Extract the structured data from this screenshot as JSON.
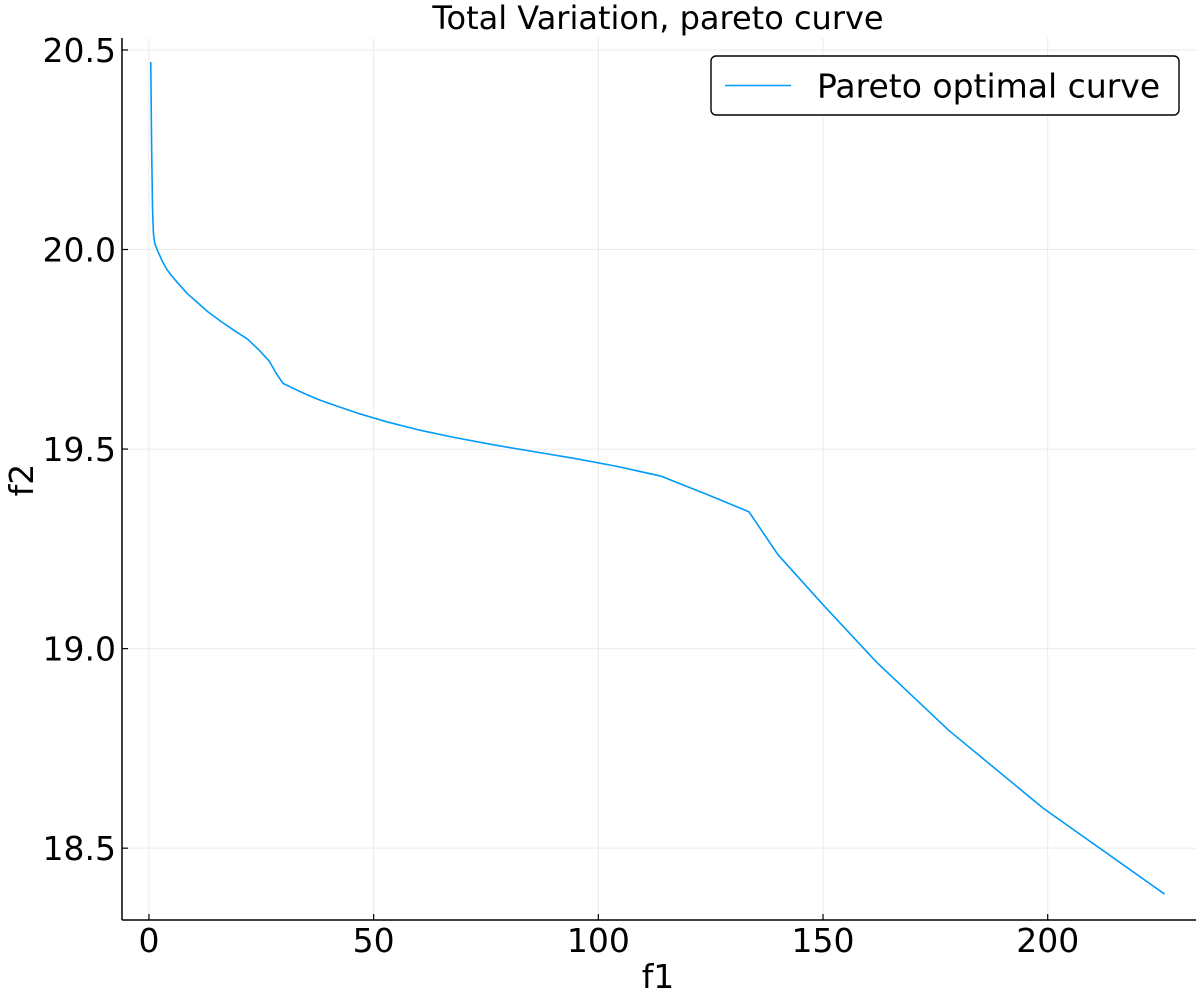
{
  "chart_data": {
    "type": "line",
    "title": "Total Variation, pareto curve",
    "xlabel": "f1",
    "ylabel": "f2",
    "xlim": [
      -6,
      233
    ],
    "ylim": [
      18.32,
      20.53
    ],
    "xticks": [
      0,
      50,
      100,
      150,
      200
    ],
    "yticks": [
      18.5,
      19.0,
      19.5,
      20.0,
      20.5
    ],
    "xtick_labels": [
      "0",
      "50",
      "100",
      "150",
      "200"
    ],
    "ytick_labels": [
      "18.5",
      "19.0",
      "19.5",
      "20.0",
      "20.5"
    ],
    "grid": true,
    "legend": {
      "position": "top-right"
    },
    "series": [
      {
        "name": "Pareto optimal curve",
        "color": "#009af9",
        "x": [
          0.4,
          0.6,
          0.8,
          1.0,
          1.3,
          2.0,
          3.0,
          4.0,
          5.0,
          6.5,
          8.5,
          10.5,
          13.0,
          16.0,
          19.0,
          22.0,
          24.5,
          26.8,
          28.3,
          29.8,
          32.5,
          35.0,
          38.0,
          42.0,
          47.0,
          53.0,
          60.0,
          68.0,
          77.0,
          86.0,
          95.0,
          104.0,
          114.0,
          124.0,
          133.5,
          140.0,
          150.0,
          162.0,
          178.0,
          199.0,
          226.0
        ],
        "y": [
          20.47,
          20.25,
          20.1,
          20.04,
          20.015,
          19.995,
          19.97,
          19.95,
          19.935,
          19.915,
          19.89,
          19.87,
          19.845,
          19.82,
          19.797,
          19.775,
          19.748,
          19.72,
          19.69,
          19.665,
          19.65,
          19.637,
          19.623,
          19.607,
          19.588,
          19.568,
          19.548,
          19.529,
          19.51,
          19.493,
          19.476,
          19.457,
          19.432,
          19.387,
          19.343,
          19.235,
          19.11,
          18.965,
          18.795,
          18.6,
          18.385
        ]
      }
    ]
  }
}
